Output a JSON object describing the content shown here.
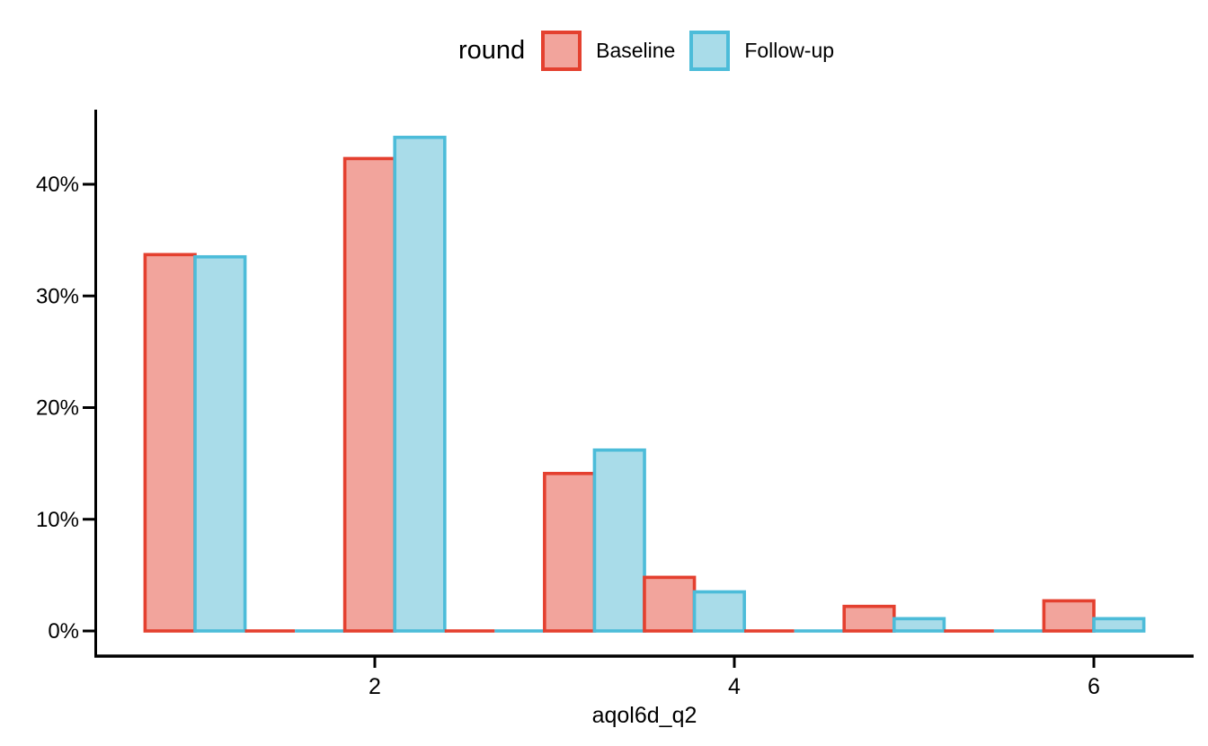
{
  "legend": {
    "title": "round",
    "items": [
      {
        "label": "Baseline",
        "stroke": "#E4402F",
        "fill": "#F2A49C"
      },
      {
        "label": "Follow-up",
        "stroke": "#4CBCD9",
        "fill": "#A9DCE9"
      }
    ]
  },
  "chart_data": {
    "type": "bar",
    "subtype": "dodged-histogram",
    "title": "",
    "xlabel": "aqol6d_q2",
    "ylabel": "",
    "legend_title": "round",
    "legend_position": "top-center",
    "grid": false,
    "x_ticks": [
      2,
      4,
      6
    ],
    "y_ticks": [
      {
        "value": 0,
        "label": "0%"
      },
      {
        "value": 10,
        "label": "10%"
      },
      {
        "value": 20,
        "label": "20%"
      },
      {
        "value": 30,
        "label": "30%"
      },
      {
        "value": 40,
        "label": "40%"
      }
    ],
    "xlim": [
      0.44,
      6.56
    ],
    "ylim": [
      0,
      46.7
    ],
    "bin_width": 0.5556,
    "bin_centers": [
      1,
      1.5556,
      2.1111,
      2.6667,
      3.2222,
      3.7778,
      4.3333,
      4.8889,
      5.4444,
      6
    ],
    "series": [
      {
        "name": "Baseline",
        "stroke": "#E4402F",
        "fill": "#F2A49C",
        "values": [
          33.7,
          0,
          42.3,
          0,
          14.1,
          4.8,
          0,
          2.2,
          0,
          2.7
        ]
      },
      {
        "name": "Follow-up",
        "stroke": "#4CBCD9",
        "fill": "#A9DCE9",
        "values": [
          33.5,
          0,
          44.2,
          0,
          16.2,
          3.5,
          0,
          1.1,
          0,
          1.1
        ]
      }
    ]
  }
}
